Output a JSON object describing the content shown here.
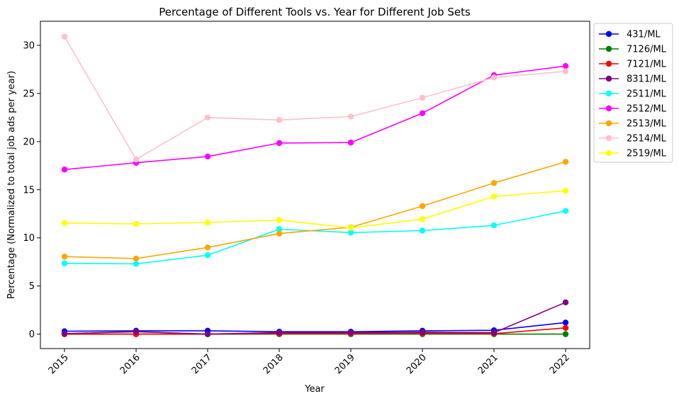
{
  "chart_data": {
    "type": "line",
    "title": "Percentage of Different Tools vs. Year for Different Job Sets",
    "xlabel": "Year",
    "ylabel": "Percentage (Normalized to total job ads per year)",
    "x": [
      "2015",
      "2016",
      "2017",
      "2018",
      "2019",
      "2020",
      "2021",
      "2022"
    ],
    "ylim": [
      -1.5,
      32.5
    ],
    "yticks": [
      0,
      5,
      10,
      15,
      20,
      25,
      30
    ],
    "grid": false,
    "legend_position": "outside-top-right",
    "series": [
      {
        "name": "431/ML",
        "color": "#0000ff",
        "values": [
          0.3,
          0.35,
          0.35,
          0.25,
          0.25,
          0.35,
          0.4,
          1.2
        ]
      },
      {
        "name": "7126/ML",
        "color": "#008000",
        "values": [
          0.0,
          0.0,
          0.0,
          0.0,
          0.0,
          0.0,
          0.0,
          0.0
        ]
      },
      {
        "name": "7121/ML",
        "color": "#ff0000",
        "values": [
          0.0,
          0.0,
          0.0,
          0.05,
          0.05,
          0.1,
          0.05,
          0.65
        ]
      },
      {
        "name": "8311/ML",
        "color": "#800080",
        "values": [
          0.05,
          0.25,
          0.0,
          0.15,
          0.15,
          0.2,
          0.15,
          3.3
        ]
      },
      {
        "name": "2511/ML",
        "color": "#00ffff",
        "values": [
          7.35,
          7.3,
          8.2,
          10.9,
          10.55,
          10.75,
          11.3,
          12.8
        ]
      },
      {
        "name": "2512/ML",
        "color": "#ff00ff",
        "values": [
          17.1,
          17.8,
          18.45,
          19.85,
          19.9,
          22.95,
          26.9,
          27.85
        ]
      },
      {
        "name": "2513/ML",
        "color": "#ffa500",
        "values": [
          8.05,
          7.85,
          9.0,
          10.45,
          11.1,
          13.3,
          15.7,
          17.9
        ]
      },
      {
        "name": "2514/ML",
        "color": "#ffc0cb",
        "values": [
          30.9,
          18.15,
          22.5,
          22.25,
          22.6,
          24.55,
          26.65,
          27.3
        ]
      },
      {
        "name": "2519/ML",
        "color": "#ffff00",
        "values": [
          11.55,
          11.45,
          11.6,
          11.85,
          11.05,
          11.95,
          14.3,
          14.9
        ]
      }
    ]
  }
}
